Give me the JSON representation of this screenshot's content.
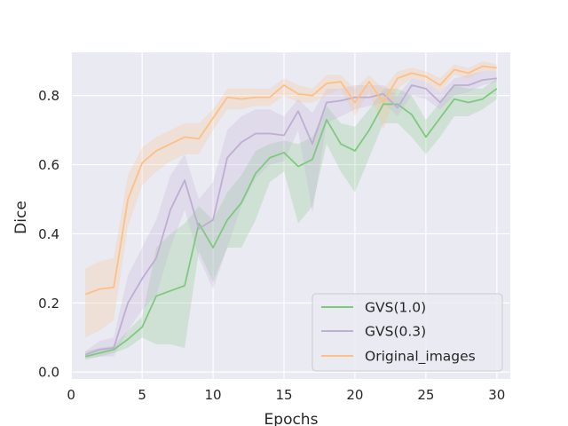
{
  "chart_data": {
    "type": "line",
    "title": "",
    "xlabel": "Epochs",
    "ylabel": "Dice",
    "xlim": [
      0.05,
      30.95
    ],
    "ylim": [
      -0.02,
      0.925
    ],
    "x_ticks": [
      0,
      5,
      10,
      15,
      20,
      25,
      30
    ],
    "y_ticks": [
      0.0,
      0.2,
      0.4,
      0.6,
      0.8
    ],
    "y_tick_labels": [
      "0.0",
      "0.2",
      "0.4",
      "0.6",
      "0.8"
    ],
    "grid": true,
    "legend_position": "lower-right",
    "x": [
      1,
      2,
      3,
      4,
      5,
      6,
      7,
      8,
      9,
      10,
      11,
      12,
      13,
      14,
      15,
      16,
      17,
      18,
      19,
      20,
      21,
      22,
      23,
      24,
      25,
      26,
      27,
      28,
      29,
      30
    ],
    "series": [
      {
        "name": "GVS(1.0)",
        "color": "#7fc97f",
        "values": [
          0.045,
          0.055,
          0.065,
          0.095,
          0.13,
          0.22,
          0.235,
          0.25,
          0.43,
          0.36,
          0.44,
          0.49,
          0.575,
          0.62,
          0.635,
          0.595,
          0.615,
          0.73,
          0.66,
          0.64,
          0.7,
          0.775,
          0.775,
          0.745,
          0.68,
          0.735,
          0.79,
          0.78,
          0.79,
          0.82
        ],
        "lower": [
          0.035,
          0.045,
          0.055,
          0.07,
          0.1,
          0.08,
          0.08,
          0.07,
          0.35,
          0.26,
          0.36,
          0.36,
          0.44,
          0.55,
          0.58,
          0.43,
          0.48,
          0.66,
          0.58,
          0.52,
          0.62,
          0.72,
          0.72,
          0.68,
          0.63,
          0.68,
          0.74,
          0.74,
          0.76,
          0.79
        ],
        "upper": [
          0.06,
          0.07,
          0.075,
          0.12,
          0.16,
          0.36,
          0.4,
          0.43,
          0.48,
          0.44,
          0.52,
          0.57,
          0.64,
          0.66,
          0.67,
          0.66,
          0.68,
          0.77,
          0.72,
          0.71,
          0.76,
          0.82,
          0.82,
          0.8,
          0.73,
          0.78,
          0.83,
          0.82,
          0.82,
          0.85
        ]
      },
      {
        "name": "GVS(0.3)",
        "color": "#beaed4",
        "values": [
          0.05,
          0.065,
          0.07,
          0.2,
          0.27,
          0.33,
          0.47,
          0.555,
          0.415,
          0.44,
          0.62,
          0.665,
          0.69,
          0.69,
          0.685,
          0.755,
          0.66,
          0.78,
          0.785,
          0.795,
          0.795,
          0.805,
          0.765,
          0.83,
          0.82,
          0.78,
          0.83,
          0.83,
          0.845,
          0.85
        ],
        "lower": [
          0.04,
          0.045,
          0.045,
          0.12,
          0.18,
          0.22,
          0.36,
          0.47,
          0.33,
          0.24,
          0.36,
          0.48,
          0.56,
          0.6,
          0.61,
          0.7,
          0.46,
          0.72,
          0.74,
          0.76,
          0.77,
          0.78,
          0.74,
          0.8,
          0.79,
          0.76,
          0.8,
          0.81,
          0.83,
          0.84
        ],
        "upper": [
          0.06,
          0.09,
          0.1,
          0.28,
          0.36,
          0.44,
          0.57,
          0.63,
          0.5,
          0.55,
          0.7,
          0.74,
          0.76,
          0.76,
          0.74,
          0.79,
          0.75,
          0.82,
          0.82,
          0.83,
          0.83,
          0.83,
          0.8,
          0.85,
          0.84,
          0.81,
          0.85,
          0.86,
          0.87,
          0.87
        ]
      },
      {
        "name": "Original_images",
        "color": "#fdc086",
        "values": [
          0.225,
          0.24,
          0.245,
          0.5,
          0.605,
          0.64,
          0.66,
          0.68,
          0.675,
          0.735,
          0.795,
          0.79,
          0.795,
          0.795,
          0.83,
          0.805,
          0.8,
          0.835,
          0.84,
          0.78,
          0.84,
          0.78,
          0.85,
          0.865,
          0.855,
          0.83,
          0.875,
          0.865,
          0.885,
          0.88
        ],
        "lower": [
          0.1,
          0.12,
          0.15,
          0.42,
          0.54,
          0.58,
          0.61,
          0.63,
          0.63,
          0.7,
          0.76,
          0.76,
          0.77,
          0.77,
          0.8,
          0.78,
          0.78,
          0.8,
          0.82,
          0.74,
          0.81,
          0.7,
          0.82,
          0.85,
          0.84,
          0.81,
          0.86,
          0.85,
          0.87,
          0.87
        ],
        "upper": [
          0.3,
          0.32,
          0.33,
          0.57,
          0.65,
          0.68,
          0.7,
          0.72,
          0.72,
          0.76,
          0.82,
          0.82,
          0.82,
          0.82,
          0.85,
          0.83,
          0.82,
          0.86,
          0.86,
          0.82,
          0.86,
          0.82,
          0.87,
          0.88,
          0.87,
          0.85,
          0.89,
          0.88,
          0.9,
          0.89
        ]
      }
    ]
  }
}
